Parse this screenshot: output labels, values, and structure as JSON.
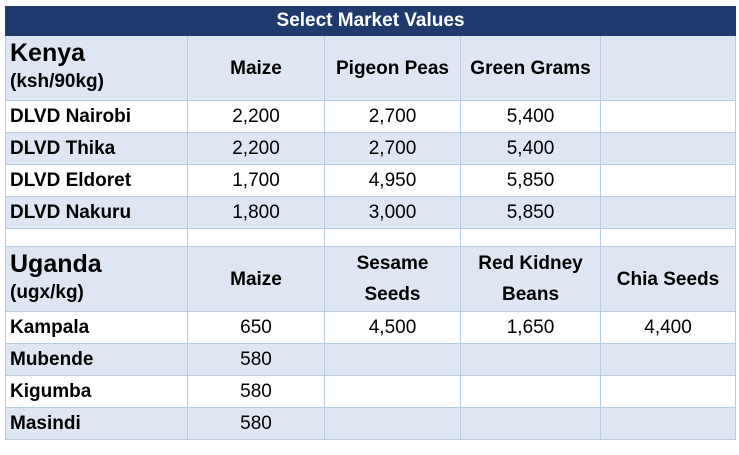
{
  "title": "Select Market Values",
  "kenya": {
    "region": "Kenya",
    "unit": "(ksh/90kg)",
    "columns": [
      "Maize",
      "Pigeon Peas",
      "Green Grams",
      ""
    ],
    "rows": [
      {
        "location": "DLVD Nairobi",
        "values": [
          "2,200",
          "2,700",
          "5,400",
          ""
        ]
      },
      {
        "location": "DLVD Thika",
        "values": [
          "2,200",
          "2,700",
          "5,400",
          ""
        ]
      },
      {
        "location": "DLVD Eldoret",
        "values": [
          "1,700",
          "4,950",
          "5,850",
          ""
        ]
      },
      {
        "location": "DLVD Nakuru",
        "values": [
          "1,800",
          "3,000",
          "5,850",
          ""
        ]
      }
    ]
  },
  "uganda": {
    "region": "Uganda",
    "unit": "(ugx/kg)",
    "columns": [
      "Maize",
      "Sesame Seeds",
      "Red Kidney Beans",
      "Chia Seeds"
    ],
    "rows": [
      {
        "location": "Kampala",
        "values": [
          "650",
          "4,500",
          "1,650",
          "4,400"
        ]
      },
      {
        "location": "Mubende",
        "values": [
          "580",
          "",
          "",
          ""
        ]
      },
      {
        "location": "Kigumba",
        "values": [
          "580",
          "",
          "",
          ""
        ]
      },
      {
        "location": "Masindi",
        "values": [
          "580",
          "",
          "",
          ""
        ]
      }
    ]
  }
}
